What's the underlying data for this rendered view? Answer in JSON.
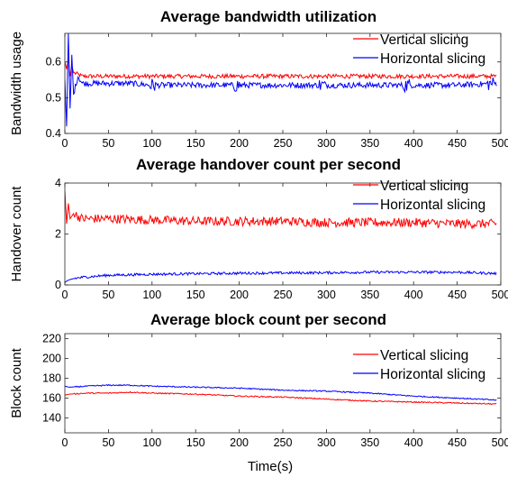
{
  "chart_data": [
    {
      "type": "line",
      "title": "Average bandwidth utilization",
      "xlabel": "",
      "ylabel": "Bandwidth usage",
      "xlim": [
        0,
        500
      ],
      "ylim": [
        0.4,
        0.68
      ],
      "xticks": [
        0,
        50,
        100,
        150,
        200,
        250,
        300,
        350,
        400,
        450,
        500
      ],
      "yticks": [
        0.4,
        0.5,
        0.6
      ],
      "ytick_labels": [
        "0.4",
        "0.5",
        "0.6"
      ],
      "legend_position": "top-right",
      "series": [
        {
          "name": "Vertical slicing",
          "color": "#ff0000",
          "x": [
            0,
            2,
            4,
            6,
            8,
            10,
            15,
            20,
            30,
            40,
            50,
            75,
            100,
            150,
            200,
            250,
            300,
            350,
            400,
            450,
            495
          ],
          "y": [
            0.6,
            0.58,
            0.61,
            0.56,
            0.59,
            0.57,
            0.565,
            0.56,
            0.56,
            0.56,
            0.56,
            0.56,
            0.56,
            0.56,
            0.56,
            0.56,
            0.56,
            0.56,
            0.56,
            0.56,
            0.56
          ]
        },
        {
          "name": "Horizontal slicing",
          "color": "#0000ff",
          "x": [
            0,
            2,
            4,
            6,
            8,
            10,
            15,
            20,
            30,
            40,
            50,
            75,
            100,
            150,
            200,
            250,
            300,
            350,
            400,
            450,
            495
          ],
          "y": [
            0.55,
            0.42,
            0.68,
            0.47,
            0.62,
            0.51,
            0.56,
            0.54,
            0.54,
            0.54,
            0.54,
            0.54,
            0.535,
            0.535,
            0.535,
            0.535,
            0.535,
            0.535,
            0.535,
            0.535,
            0.54
          ]
        }
      ]
    },
    {
      "type": "line",
      "title": "Average handover count per second",
      "xlabel": "",
      "ylabel": "Handover count",
      "xlim": [
        0,
        500
      ],
      "ylim": [
        0,
        4
      ],
      "xticks": [
        0,
        50,
        100,
        150,
        200,
        250,
        300,
        350,
        400,
        450,
        500
      ],
      "yticks": [
        0,
        2,
        4
      ],
      "ytick_labels": [
        "0",
        "2",
        "4"
      ],
      "legend_position": "top-right",
      "series": [
        {
          "name": "Vertical slicing",
          "color": "#ff0000",
          "x": [
            0,
            2,
            4,
            6,
            10,
            20,
            50,
            100,
            150,
            200,
            250,
            300,
            350,
            400,
            450,
            495
          ],
          "y": [
            3.7,
            2.4,
            3.2,
            2.6,
            2.8,
            2.6,
            2.6,
            2.55,
            2.5,
            2.5,
            2.5,
            2.45,
            2.45,
            2.45,
            2.4,
            2.4
          ]
        },
        {
          "name": "Horizontal slicing",
          "color": "#0000ff",
          "x": [
            0,
            2,
            5,
            10,
            20,
            50,
            100,
            150,
            200,
            250,
            300,
            350,
            400,
            450,
            495
          ],
          "y": [
            0.1,
            0.15,
            0.2,
            0.25,
            0.3,
            0.38,
            0.42,
            0.44,
            0.46,
            0.47,
            0.48,
            0.5,
            0.5,
            0.5,
            0.45
          ]
        }
      ]
    },
    {
      "type": "line",
      "title": "Average block count per second",
      "xlabel": "Time(s)",
      "ylabel": "Block count",
      "xlim": [
        0,
        500
      ],
      "ylim": [
        125,
        225
      ],
      "xticks": [
        0,
        50,
        100,
        150,
        200,
        250,
        300,
        350,
        400,
        450,
        500
      ],
      "yticks": [
        140,
        160,
        180,
        200,
        220
      ],
      "ytick_labels": [
        "140",
        "160",
        "180",
        "200",
        "220"
      ],
      "legend_position": "top-right",
      "series": [
        {
          "name": "Vertical slicing",
          "color": "#ff0000",
          "x": [
            0,
            5,
            25,
            50,
            75,
            100,
            150,
            200,
            250,
            300,
            350,
            400,
            450,
            495
          ],
          "y": [
            163,
            164,
            165,
            165,
            166,
            165,
            164,
            162,
            161,
            159,
            157,
            156,
            155,
            154
          ]
        },
        {
          "name": "Horizontal slicing",
          "color": "#0000ff",
          "x": [
            0,
            5,
            25,
            50,
            75,
            100,
            150,
            200,
            250,
            300,
            350,
            400,
            450,
            495
          ],
          "y": [
            172,
            171,
            172,
            173,
            173,
            172,
            171,
            170,
            168,
            167,
            165,
            162,
            160,
            158
          ]
        }
      ]
    }
  ]
}
